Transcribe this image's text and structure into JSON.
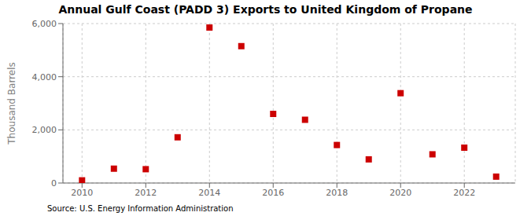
{
  "chart_data": {
    "type": "scatter",
    "title": "Annual Gulf Coast (PADD 3) Exports to United Kingdom of Propane",
    "ylabel": "Thousand Barrels",
    "annotations": [
      "Source: U.S. Energy Information Administration"
    ],
    "x": [
      2010,
      2011,
      2012,
      2013,
      2014,
      2015,
      2016,
      2017,
      2018,
      2019,
      2020,
      2021,
      2022,
      2023
    ],
    "values": [
      100,
      540,
      520,
      1720,
      5850,
      5150,
      2600,
      2380,
      1430,
      890,
      3380,
      1080,
      1330,
      240
    ],
    "color": "#cc0000",
    "marker": "square",
    "xlim": [
      2009.4,
      2023.6
    ],
    "ylim": [
      0,
      6000
    ],
    "xticks": [
      2010,
      2012,
      2014,
      2016,
      2018,
      2020,
      2022
    ],
    "yticks": [
      0,
      {
        "value": 2000,
        "label": "2,000"
      },
      {
        "value": 4000,
        "label": "4,000"
      },
      {
        "value": 6000,
        "label": "6,000"
      }
    ],
    "grid": true
  }
}
